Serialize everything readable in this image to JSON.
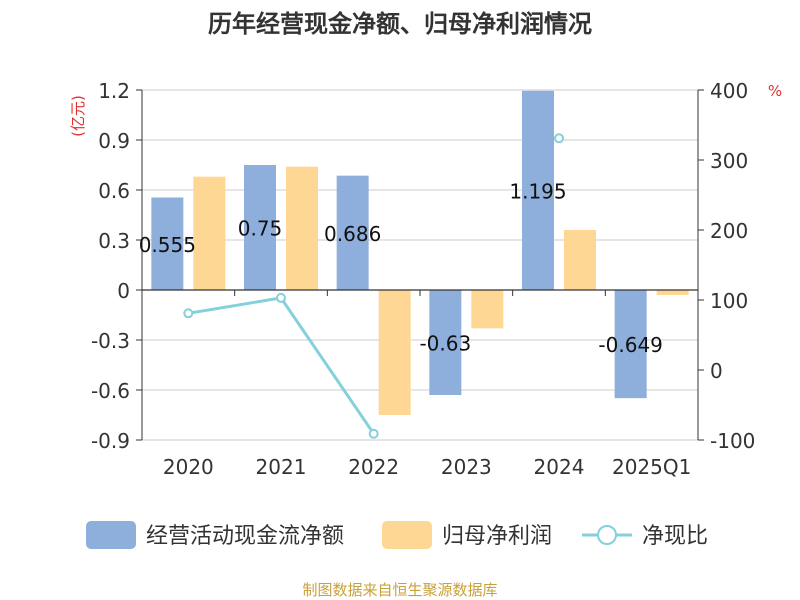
{
  "chart_data": {
    "type": "bar",
    "title": "历年经营现金净额、归母净利润情况",
    "categories": [
      "2020",
      "2021",
      "2022",
      "2023",
      "2024",
      "2025Q1"
    ],
    "left_axis": {
      "unit_label": "(亿元)",
      "ylim": [
        -0.9,
        1.2
      ],
      "ticks": [
        1.2,
        0.9,
        0.6,
        0.3,
        0,
        -0.3,
        -0.6,
        -0.9
      ],
      "tick_labels": [
        "1.2",
        "0.9",
        "0.6",
        "0.3",
        "0",
        "-0.3",
        "-0.6",
        "-0.9"
      ]
    },
    "right_axis": {
      "unit_label": "%",
      "ylim": [
        -100,
        400
      ],
      "ticks": [
        400,
        300,
        200,
        100,
        0,
        -100
      ],
      "tick_labels": [
        "400",
        "300",
        "200",
        "100",
        "0",
        "-100"
      ]
    },
    "series": [
      {
        "name": "经营活动现金流净额",
        "type": "bar",
        "axis": "left",
        "color": "#8eaedb",
        "values": [
          0.555,
          0.75,
          0.686,
          -0.63,
          1.195,
          -0.649
        ],
        "data_labels": [
          "0.555",
          "0.75",
          "0.686",
          "-0.63",
          "1.195",
          "-0.649"
        ]
      },
      {
        "name": "归母净利润",
        "type": "bar",
        "axis": "left",
        "color": "#ffd795",
        "values": [
          0.68,
          0.74,
          -0.75,
          -0.23,
          0.36,
          -0.03
        ]
      },
      {
        "name": "净现比",
        "type": "line",
        "axis": "right",
        "color": "#84d0db",
        "values": [
          81,
          103,
          -91,
          null,
          331,
          null
        ]
      }
    ],
    "grid": true,
    "legend_position": "bottom"
  },
  "source_note": "制图数据来自恒生聚源数据库",
  "colors": {
    "title": "#333333",
    "axis_unit": "#e03030",
    "tick_text": "#333333",
    "grid": "#cccccc",
    "source_note": "#c9a13a"
  }
}
